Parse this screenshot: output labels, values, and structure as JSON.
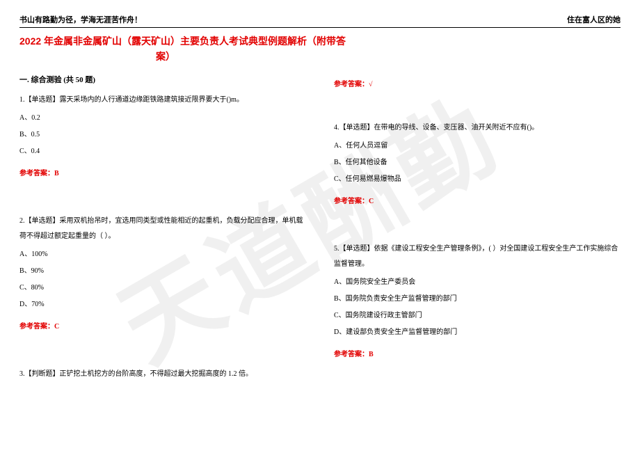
{
  "header": {
    "left": "书山有路勤为径，学海无涯苦作舟！",
    "right": "住在富人区的她"
  },
  "watermark": "天道酬勤",
  "title_line1": "2022 年金属非金属矿山（露天矿山）主要负责人考试典型例题解析（附带答",
  "title_line2": "案）",
  "section": "一. 综合测验 (共 50 题)",
  "left": {
    "q1": {
      "stem": "1.【单选题】露天采场内的人行通道边缘距铁路建筑接近限界要大于()m。",
      "a": "A、0.2",
      "b": "B、0.5",
      "c": "C、0.4",
      "ans": "参考答案：B"
    },
    "q2": {
      "stem": "2.【单选题】采用双机抬吊时，宜选用同类型或性能相近的起重机，负载分配应合理，单机载荷不得超过额定起重量的（ ）。",
      "a": "A、100%",
      "b": "B、90%",
      "c": "C、80%",
      "d": "D、70%",
      "ans": "参考答案：C"
    },
    "q3": {
      "stem": "3.【判断题】正铲挖土机挖方的台阶高度，不得超过最大挖掘高度的 1.2 倍。"
    }
  },
  "right": {
    "q3ans": "参考答案：√",
    "q4": {
      "stem": "4.【单选题】在带电的导线、设备、变压器、油开关附近不应有()。",
      "a": "A、任何人员逗留",
      "b": "B、任何其他设备",
      "c": "C、任何易燃易爆物品",
      "ans": "参考答案：C"
    },
    "q5": {
      "stem": "5.【单选题】依据《建设工程安全生产管理条例》，( ）对全国建设工程安全生产工作实施综合监督管理。",
      "a": "A、国务院安全生产委员会",
      "b": "B、国务院负责安全生产监督管理的部门",
      "c": "C、国务院建设行政主管部门",
      "d": "D、建设部负责安全生产监督管理的部门",
      "ans": "参考答案：B"
    }
  }
}
